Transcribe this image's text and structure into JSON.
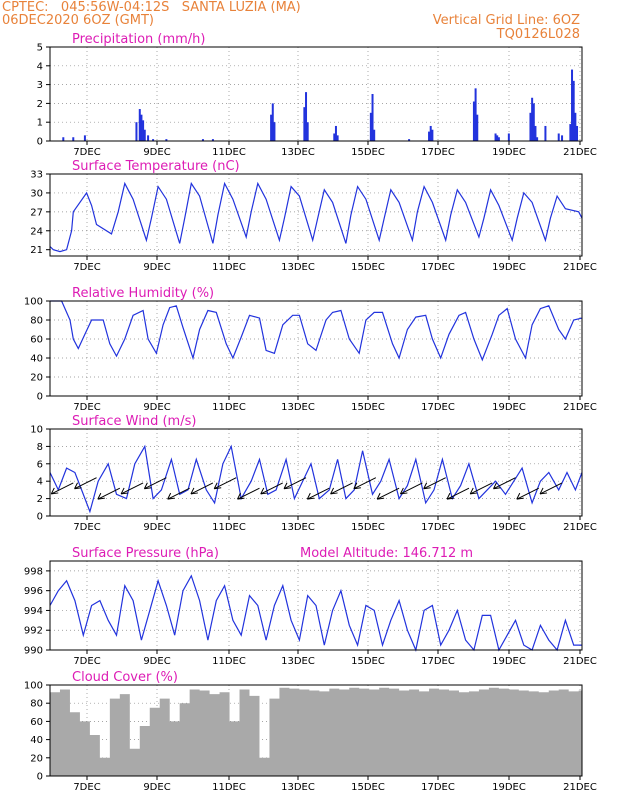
{
  "header": {
    "line1": "CPTEC:   045:56W-04:12S   SANTA LUZIA (MA)",
    "line2": "06DEC2020 6OZ (GMT)",
    "right1": "Vertical Grid Line: 6OZ",
    "right2": "TQ0126L028"
  },
  "colors": {
    "header": "#e8823a",
    "title": "#dd1cb5",
    "line": "#2233dd",
    "cloud": "#a9a9a9",
    "wind_arrow": "#000000"
  },
  "chart_data": [
    {
      "type": "bar",
      "title": "Precipitation  (mm/h)",
      "x_tick_labels": [
        "7DEC",
        "9DEC",
        "11DEC",
        "13DEC",
        "15DEC",
        "17DEC",
        "19DEC",
        "21DEC"
      ],
      "ylim": [
        0,
        5
      ],
      "y_ticks": [
        0,
        1,
        2,
        3,
        4,
        5
      ],
      "grid": true,
      "x_unit": "day (day 0 = 06DEC 06Z)",
      "series": [
        {
          "x": [
            0.4,
            0.7,
            1.05,
            2.6,
            2.7,
            2.75,
            2.8,
            2.85,
            2.95,
            3.1,
            3.5,
            4.6,
            4.9,
            6.65,
            6.7,
            6.75,
            7.65,
            7.7,
            7.75,
            8.55,
            8.6,
            8.65,
            9.65,
            9.7,
            9.75,
            10.8,
            11.4,
            11.45,
            11.5,
            12.75,
            12.8,
            12.85,
            13.4,
            13.45,
            13.5,
            13.8,
            14.45,
            14.5,
            14.55,
            14.6,
            14.65,
            14.9,
            15.3,
            15.4,
            15.65,
            15.7,
            15.75,
            15.8,
            15.85
          ],
          "values": [
            0.2,
            0.2,
            0.3,
            1.0,
            1.7,
            1.4,
            1.1,
            0.6,
            0.3,
            0.1,
            0.1,
            0.1,
            0.1,
            1.4,
            2.0,
            1.0,
            1.8,
            2.6,
            1.0,
            0.4,
            0.8,
            0.3,
            1.5,
            2.5,
            0.6,
            0.1,
            0.5,
            0.8,
            0.6,
            2.1,
            2.8,
            1.4,
            0.4,
            0.3,
            0.2,
            0.4,
            1.5,
            2.3,
            2.0,
            0.8,
            0.2,
            0.8,
            0.4,
            0.3,
            0.9,
            3.8,
            3.2,
            1.5,
            0.8
          ]
        }
      ]
    },
    {
      "type": "line",
      "title": "Surface Temperature (nC)",
      "x_tick_labels": [
        "7DEC",
        "9DEC",
        "11DEC",
        "13DEC",
        "15DEC",
        "17DEC",
        "19DEC",
        "21DEC"
      ],
      "ylim": [
        20,
        33
      ],
      "y_ticks": [
        21,
        24,
        27,
        30,
        33
      ],
      "grid": true,
      "series": [
        {
          "x": [
            0.0,
            0.1,
            0.3,
            0.5,
            0.65,
            0.7,
            1.1,
            1.25,
            1.4,
            1.85,
            2.05,
            2.25,
            2.5,
            2.9,
            3.05,
            3.25,
            3.5,
            3.9,
            4.05,
            4.25,
            4.5,
            4.9,
            5.05,
            5.25,
            5.5,
            5.9,
            6.05,
            6.25,
            6.5,
            6.9,
            7.05,
            7.25,
            7.5,
            7.9,
            8.05,
            8.25,
            8.5,
            8.9,
            9.05,
            9.25,
            9.5,
            9.9,
            10.05,
            10.25,
            10.5,
            10.9,
            11.05,
            11.25,
            11.5,
            11.9,
            12.05,
            12.25,
            12.5,
            12.9,
            13.05,
            13.25,
            13.5,
            13.9,
            14.05,
            14.25,
            14.5,
            14.9,
            15.05,
            15.25,
            15.5,
            15.9,
            16.0
          ],
          "values": [
            21.5,
            21.0,
            20.7,
            21.0,
            24.0,
            27.0,
            30.0,
            28.0,
            25.0,
            23.5,
            27.0,
            31.5,
            29.0,
            22.5,
            26.0,
            31.0,
            29.0,
            22.0,
            26.0,
            31.5,
            29.5,
            22.0,
            26.5,
            31.5,
            29.0,
            23.0,
            27.0,
            31.5,
            29.0,
            22.5,
            26.0,
            31.0,
            29.5,
            22.5,
            26.0,
            30.5,
            28.5,
            22.0,
            26.5,
            31.0,
            29.0,
            22.5,
            26.0,
            30.5,
            28.5,
            22.5,
            27.0,
            31.0,
            28.5,
            22.5,
            26.5,
            30.5,
            28.5,
            23.0,
            26.0,
            30.5,
            28.0,
            22.5,
            26.0,
            30.0,
            28.5,
            22.5,
            26.0,
            29.5,
            27.5,
            27.0,
            26.0
          ]
        }
      ]
    },
    {
      "type": "line",
      "title": "Relative Humidity (%)",
      "x_tick_labels": [
        "7DEC",
        "9DEC",
        "11DEC",
        "13DEC",
        "15DEC",
        "17DEC",
        "19DEC",
        "21DEC"
      ],
      "ylim": [
        0,
        100
      ],
      "y_ticks": [
        0,
        20,
        40,
        60,
        80,
        100
      ],
      "grid": true,
      "series": [
        {
          "x": [
            0.0,
            0.35,
            0.6,
            0.7,
            0.85,
            1.05,
            1.25,
            1.6,
            1.8,
            2.0,
            2.25,
            2.5,
            2.8,
            2.95,
            3.2,
            3.4,
            3.6,
            3.8,
            4.0,
            4.3,
            4.5,
            4.75,
            5.0,
            5.3,
            5.5,
            5.75,
            6.0,
            6.3,
            6.5,
            6.75,
            7.0,
            7.3,
            7.5,
            7.75,
            8.0,
            8.3,
            8.5,
            8.75,
            9.0,
            9.3,
            9.5,
            9.75,
            10.0,
            10.3,
            10.5,
            10.75,
            11.0,
            11.3,
            11.5,
            11.75,
            12.0,
            12.3,
            12.5,
            12.75,
            13.0,
            13.3,
            13.5,
            13.75,
            14.0,
            14.3,
            14.5,
            14.75,
            15.0,
            15.3,
            15.5,
            15.75,
            16.0
          ],
          "values": [
            100,
            100,
            80,
            60,
            50,
            65,
            80,
            80,
            55,
            42,
            60,
            85,
            90,
            60,
            45,
            75,
            93,
            95,
            72,
            40,
            70,
            90,
            88,
            55,
            40,
            62,
            85,
            82,
            48,
            45,
            75,
            85,
            85,
            55,
            48,
            80,
            88,
            90,
            60,
            45,
            80,
            88,
            88,
            55,
            40,
            70,
            83,
            85,
            60,
            40,
            65,
            85,
            88,
            60,
            38,
            65,
            85,
            92,
            60,
            40,
            75,
            92,
            95,
            70,
            60,
            80,
            82
          ]
        }
      ]
    },
    {
      "type": "line",
      "title": "Surface Wind (m/s)",
      "x_tick_labels": [
        "7DEC",
        "9DEC",
        "11DEC",
        "13DEC",
        "15DEC",
        "17DEC",
        "19DEC",
        "21DEC"
      ],
      "ylim": [
        0,
        10
      ],
      "y_ticks": [
        0,
        2,
        4,
        6,
        8,
        10
      ],
      "grid": true,
      "arrows_shown": true,
      "series": [
        {
          "x": [
            0.0,
            0.25,
            0.5,
            0.75,
            0.95,
            1.2,
            1.45,
            1.75,
            2.0,
            2.3,
            2.55,
            2.85,
            3.1,
            3.35,
            3.65,
            3.9,
            4.15,
            4.4,
            4.7,
            4.95,
            5.2,
            5.45,
            5.75,
            6.05,
            6.3,
            6.55,
            6.8,
            7.1,
            7.35,
            7.6,
            7.85,
            8.1,
            8.4,
            8.65,
            8.9,
            9.15,
            9.4,
            9.7,
            9.95,
            10.2,
            10.5,
            10.75,
            11.0,
            11.3,
            11.55,
            11.8,
            12.1,
            12.35,
            12.6,
            12.9,
            13.15,
            13.4,
            13.7,
            13.95,
            14.2,
            14.5,
            14.75,
            15.0,
            15.3,
            15.55,
            15.8,
            16.0
          ],
          "values": [
            5.0,
            3.0,
            5.5,
            5.0,
            3.0,
            0.5,
            4.0,
            6.0,
            2.5,
            2.0,
            6.0,
            8.0,
            2.0,
            3.0,
            6.5,
            2.5,
            3.0,
            6.5,
            3.0,
            1.5,
            6.0,
            8.0,
            2.0,
            4.0,
            6.5,
            2.5,
            3.0,
            6.5,
            2.0,
            4.0,
            6.0,
            2.0,
            3.0,
            6.5,
            2.0,
            3.0,
            7.5,
            2.5,
            4.0,
            6.5,
            2.0,
            3.5,
            6.5,
            1.5,
            3.0,
            6.5,
            2.0,
            3.5,
            6.0,
            2.0,
            3.0,
            4.0,
            2.5,
            4.0,
            5.5,
            1.5,
            4.0,
            5.0,
            3.0,
            5.0,
            3.0,
            5.0
          ]
        }
      ]
    },
    {
      "type": "line",
      "title": "Surface Pressure (hPa)",
      "annotation": "Model Altitude: 146.712 m",
      "x_tick_labels": [
        "7DEC",
        "9DEC",
        "11DEC",
        "13DEC",
        "15DEC",
        "17DEC",
        "19DEC",
        "21DEC"
      ],
      "ylim": [
        990,
        999
      ],
      "y_ticks": [
        990,
        992,
        994,
        996,
        998
      ],
      "grid": true,
      "series": [
        {
          "x": [
            0.0,
            0.25,
            0.5,
            0.75,
            1.0,
            1.25,
            1.5,
            1.75,
            2.0,
            2.25,
            2.5,
            2.75,
            3.0,
            3.25,
            3.5,
            3.75,
            4.0,
            4.25,
            4.5,
            4.75,
            5.0,
            5.25,
            5.5,
            5.75,
            6.0,
            6.25,
            6.5,
            6.75,
            7.0,
            7.25,
            7.5,
            7.75,
            8.0,
            8.25,
            8.5,
            8.75,
            9.0,
            9.25,
            9.5,
            9.75,
            10.0,
            10.25,
            10.5,
            10.75,
            11.0,
            11.25,
            11.5,
            11.75,
            12.0,
            12.25,
            12.5,
            12.75,
            13.0,
            13.25,
            13.5,
            13.75,
            14.0,
            14.25,
            14.5,
            14.75,
            15.0,
            15.25,
            15.5,
            15.75,
            16.0
          ],
          "values": [
            994.5,
            996.0,
            997.0,
            995.0,
            991.5,
            994.5,
            995.0,
            993.0,
            991.5,
            996.5,
            995.0,
            991.0,
            994.0,
            997.0,
            994.5,
            991.5,
            996.0,
            997.5,
            995.0,
            991.0,
            995.0,
            996.5,
            993.0,
            991.5,
            995.5,
            994.5,
            991.0,
            994.5,
            996.5,
            993.0,
            991.0,
            995.5,
            994.5,
            990.5,
            994.0,
            996.0,
            992.5,
            990.5,
            994.5,
            994.0,
            990.5,
            993.0,
            995.0,
            992.0,
            990.0,
            994.0,
            994.5,
            990.5,
            992.0,
            994.0,
            991.0,
            990.0,
            993.5,
            993.5,
            990.0,
            991.5,
            993.0,
            990.5,
            990.0,
            992.5,
            991.0,
            990.0,
            993.0,
            990.5,
            990.5
          ]
        }
      ]
    },
    {
      "type": "bar",
      "title": "Cloud Cover (%)",
      "x_tick_labels": [
        "7DEC",
        "9DEC",
        "11DEC",
        "13DEC",
        "15DEC",
        "17DEC",
        "19DEC",
        "21DEC"
      ],
      "ylim": [
        0,
        100
      ],
      "y_ticks": [
        0,
        20,
        40,
        60,
        80,
        100
      ],
      "grid": true,
      "series": [
        {
          "x": [
            0.0,
            0.3,
            0.6,
            0.9,
            1.2,
            1.5,
            1.8,
            2.1,
            2.4,
            2.7,
            3.0,
            3.3,
            3.6,
            3.9,
            4.2,
            4.5,
            4.8,
            5.1,
            5.4,
            5.7,
            6.0,
            6.3,
            6.6,
            6.9,
            7.2,
            7.5,
            7.8,
            8.1,
            8.4,
            8.7,
            9.0,
            9.3,
            9.6,
            9.9,
            10.2,
            10.5,
            10.8,
            11.1,
            11.4,
            11.7,
            12.0,
            12.3,
            12.6,
            12.9,
            13.2,
            13.5,
            13.8,
            14.1,
            14.4,
            14.7,
            15.0,
            15.3,
            15.6,
            15.9
          ],
          "values": [
            92,
            95,
            70,
            60,
            45,
            20,
            85,
            90,
            30,
            55,
            75,
            85,
            60,
            80,
            95,
            94,
            90,
            92,
            60,
            95,
            88,
            20,
            85,
            97,
            96,
            95,
            94,
            93,
            96,
            95,
            97,
            96,
            95,
            97,
            96,
            94,
            95,
            93,
            96,
            95,
            94,
            92,
            93,
            95,
            97,
            96,
            95,
            94,
            93,
            92,
            94,
            95,
            93,
            94
          ]
        }
      ]
    }
  ]
}
